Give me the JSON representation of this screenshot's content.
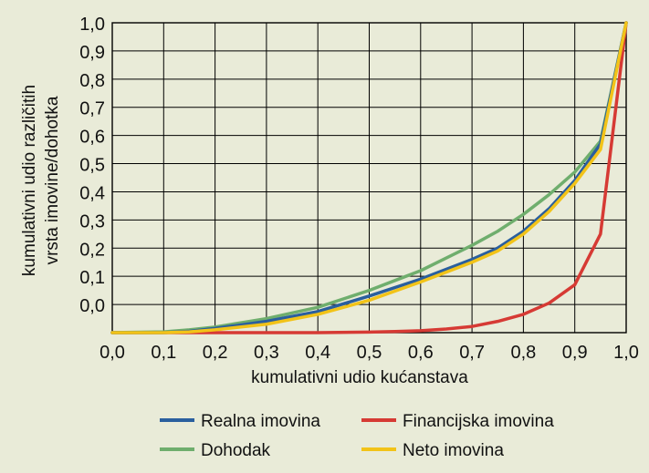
{
  "chart_data": {
    "type": "line",
    "title": "",
    "xlabel": "kumulativni udio kućanstava",
    "ylabel_line1": "kumulativni udio različitih",
    "ylabel_line2": "vrsta imovine/dohotka",
    "xlim": [
      0.0,
      1.0
    ],
    "ylim": [
      -0.1,
      1.0
    ],
    "grid": true,
    "legend_position": "bottom",
    "x_tick_labels": [
      "0,0",
      "0,1",
      "0,2",
      "0,3",
      "0,4",
      "0,5",
      "0,6",
      "0,7",
      "0,8",
      "0,9",
      "1,0"
    ],
    "x_tick_values": [
      0.0,
      0.1,
      0.2,
      0.3,
      0.4,
      0.5,
      0.6,
      0.7,
      0.8,
      0.9,
      1.0
    ],
    "y_tick_labels": [
      "1,0",
      "0,9",
      "0,8",
      "0,7",
      "0,6",
      "0,5",
      "0,4",
      "0,3",
      "0,2",
      "0,1",
      "0,0"
    ],
    "y_tick_values": [
      1.0,
      0.9,
      0.8,
      0.7,
      0.6,
      0.5,
      0.4,
      0.3,
      0.2,
      0.1,
      0.0
    ],
    "series": [
      {
        "name": "Realna imovina",
        "color": "#2a5f9e",
        "x": [
          0.0,
          0.1,
          0.15,
          0.2,
          0.3,
          0.4,
          0.5,
          0.6,
          0.7,
          0.75,
          0.8,
          0.85,
          0.9,
          0.95,
          1.0
        ],
        "y": [
          -0.1,
          -0.1,
          -0.095,
          -0.085,
          -0.06,
          -0.025,
          0.03,
          0.09,
          0.16,
          0.2,
          0.26,
          0.34,
          0.44,
          0.57,
          1.0
        ]
      },
      {
        "name": "Financijska imovina",
        "color": "#d63a34",
        "x": [
          0.0,
          0.1,
          0.2,
          0.3,
          0.4,
          0.5,
          0.55,
          0.6,
          0.65,
          0.7,
          0.75,
          0.8,
          0.85,
          0.9,
          0.95,
          1.0
        ],
        "y": [
          -0.1,
          -0.1,
          -0.1,
          -0.1,
          -0.1,
          -0.098,
          -0.096,
          -0.093,
          -0.087,
          -0.078,
          -0.06,
          -0.035,
          0.005,
          0.07,
          0.25,
          1.0
        ]
      },
      {
        "name": "Dohodak",
        "color": "#6fae6d",
        "x": [
          0.0,
          0.1,
          0.15,
          0.2,
          0.3,
          0.4,
          0.5,
          0.55,
          0.6,
          0.65,
          0.7,
          0.75,
          0.8,
          0.85,
          0.9,
          0.95,
          1.0
        ],
        "y": [
          -0.1,
          -0.097,
          -0.09,
          -0.08,
          -0.05,
          -0.01,
          0.05,
          0.085,
          0.12,
          0.165,
          0.21,
          0.26,
          0.32,
          0.39,
          0.47,
          0.58,
          1.0
        ]
      },
      {
        "name": "Neto imovina",
        "color": "#f2c318",
        "x": [
          0.0,
          0.1,
          0.15,
          0.2,
          0.3,
          0.4,
          0.5,
          0.6,
          0.7,
          0.75,
          0.8,
          0.85,
          0.9,
          0.95,
          1.0
        ],
        "y": [
          -0.1,
          -0.1,
          -0.097,
          -0.09,
          -0.07,
          -0.035,
          0.015,
          0.08,
          0.15,
          0.19,
          0.25,
          0.33,
          0.43,
          0.55,
          1.0
        ]
      }
    ],
    "legend_rows": [
      [
        "Realna imovina",
        "Financijska imovina"
      ],
      [
        "Dohodak",
        "Neto imovina"
      ]
    ]
  }
}
